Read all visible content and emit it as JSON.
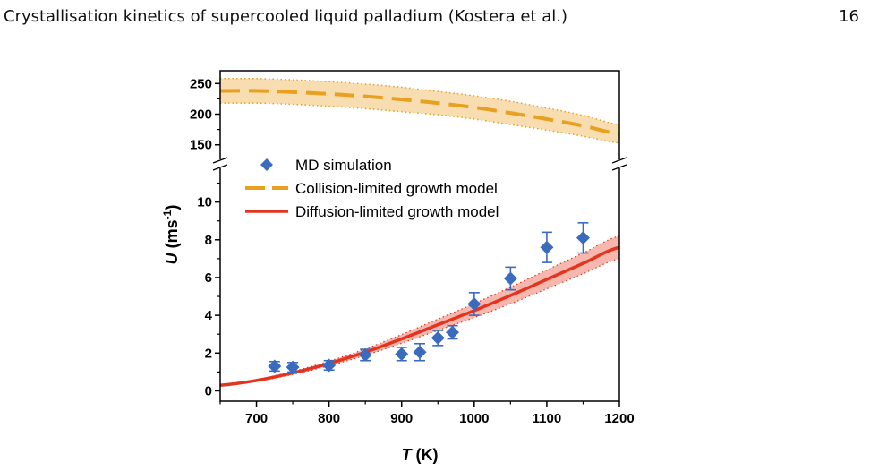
{
  "document": {
    "running_title": "Crystallisation kinetics of supercooled liquid palladium (Kostera et al.)",
    "page_number": "16"
  },
  "chart_data": {
    "type": "scatter",
    "title": "",
    "xlabel": {
      "var": "T",
      "unit": " (K)"
    },
    "ylabel": {
      "var": "U",
      "unit_open": " (ms",
      "unit_exp": "-1",
      "unit_close": ")"
    },
    "xlim": [
      650,
      1200
    ],
    "x_ticks": [
      700,
      800,
      900,
      1000,
      1100,
      1200
    ],
    "y_lower": {
      "range": [
        -0.5,
        11.5
      ],
      "ticks": [
        0,
        2,
        4,
        6,
        8,
        10
      ]
    },
    "y_upper": {
      "range": [
        135,
        265
      ],
      "ticks": [
        150,
        200,
        250
      ]
    },
    "axis_break": true,
    "legend": {
      "placement": "upper-left"
    },
    "colors": {
      "md": "#3a6bbf",
      "collision": "#e8a020",
      "collision_band": "#f8ddb0",
      "diffusion": "#e43420",
      "diffusion_band": "#f6b8ae"
    },
    "series": [
      {
        "name": "MD simulation",
        "kind": "points",
        "x": [
          725,
          750,
          800,
          850,
          900,
          925,
          950,
          970,
          1000,
          1050,
          1100,
          1150
        ],
        "y": [
          1.3,
          1.25,
          1.35,
          1.9,
          1.95,
          2.05,
          2.8,
          3.1,
          4.6,
          5.95,
          7.6,
          8.1
        ],
        "err": [
          0.25,
          0.25,
          0.25,
          0.3,
          0.35,
          0.45,
          0.4,
          0.35,
          0.6,
          0.6,
          0.8,
          0.8
        ]
      },
      {
        "name": "Collision-limited growth model",
        "kind": "dashed-line",
        "x": [
          650,
          700,
          750,
          800,
          850,
          900,
          950,
          1000,
          1050,
          1100,
          1150,
          1200
        ],
        "y": [
          238,
          238,
          236,
          233,
          229,
          224,
          218,
          211,
          202,
          192,
          181,
          168
        ],
        "band": [
          20,
          20,
          20,
          20,
          20,
          20,
          19,
          19,
          19,
          18,
          17,
          15
        ]
      },
      {
        "name": "Diffusion-limited growth model",
        "kind": "line",
        "x": [
          650,
          700,
          750,
          800,
          850,
          900,
          950,
          1000,
          1050,
          1100,
          1150,
          1200
        ],
        "y": [
          0.3,
          0.55,
          0.95,
          1.45,
          2.05,
          2.75,
          3.5,
          4.25,
          5.05,
          5.9,
          6.75,
          7.6
        ],
        "band": [
          0.03,
          0.05,
          0.08,
          0.12,
          0.17,
          0.23,
          0.3,
          0.37,
          0.44,
          0.5,
          0.55,
          0.6
        ]
      }
    ]
  }
}
